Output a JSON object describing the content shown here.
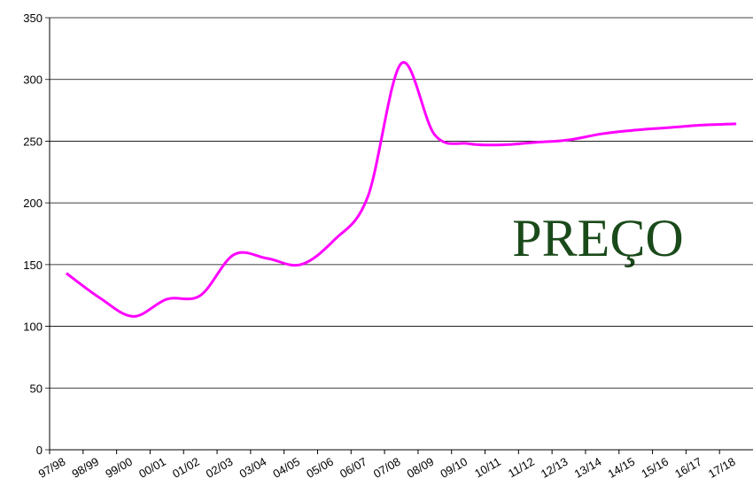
{
  "chart_data": {
    "type": "line",
    "annotation": "PREÇO",
    "categories": [
      "97/98",
      "98/99",
      "99/00",
      "00/01",
      "01/02",
      "02/03",
      "03/04",
      "04/05",
      "05/06",
      "06/07",
      "07/08",
      "08/09",
      "09/10",
      "10/11",
      "11/12",
      "12/13",
      "13/14",
      "14/15",
      "15/16",
      "16/17",
      "17/18"
    ],
    "series": [
      {
        "color": "#ff00ff",
        "values": [
          143,
          123,
          108,
          122,
          125,
          158,
          155,
          150,
          170,
          205,
          313,
          255,
          248,
          247,
          249,
          251,
          256,
          259,
          261,
          263,
          264
        ]
      }
    ],
    "ylim": [
      0,
      350
    ],
    "yticks": [
      0,
      50,
      100,
      150,
      200,
      250,
      300,
      350
    ],
    "grid": true
  }
}
